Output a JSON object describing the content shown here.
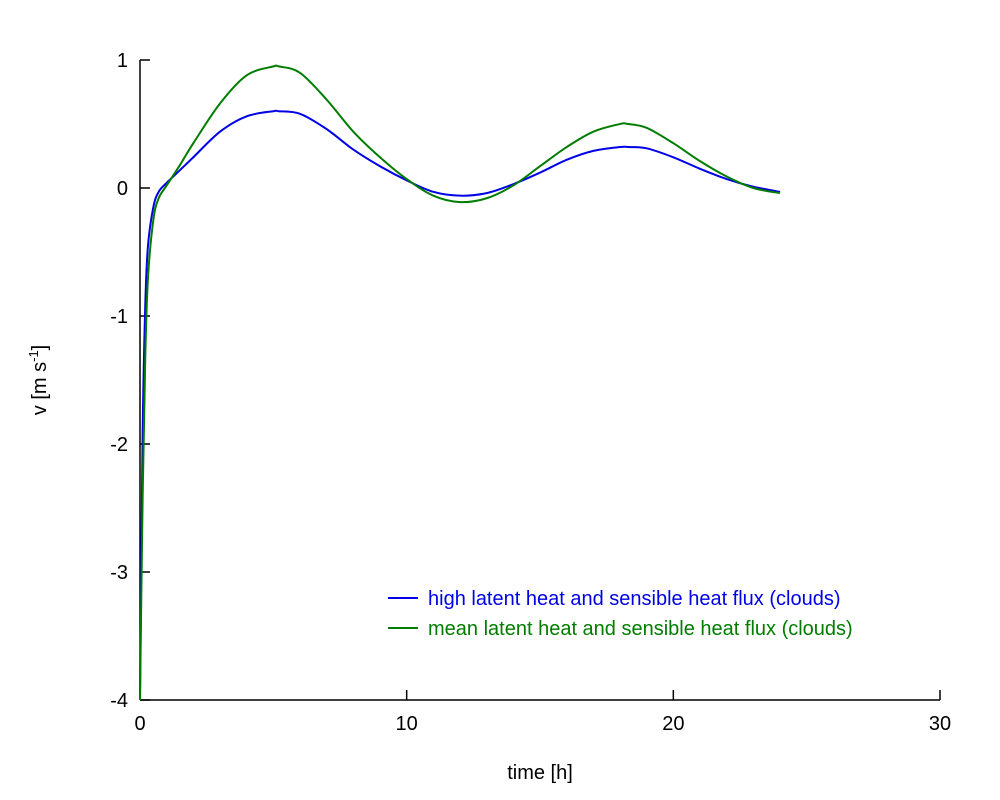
{
  "chart_data": {
    "type": "line",
    "title": "",
    "xlabel": "time [h]",
    "ylabel_main": "v [m s",
    "ylabel_sup": "-1",
    "ylabel_close": "]",
    "xlim": [
      0,
      30
    ],
    "ylim": [
      -4,
      1
    ],
    "xticks": [
      0,
      10,
      20,
      30
    ],
    "yticks": [
      -4,
      -3,
      -2,
      -1,
      0,
      1
    ],
    "grid": false,
    "legend_position": "lower-right",
    "series": [
      {
        "name": "high latent heat and sensible heat flux (clouds)",
        "color": "#0000e6",
        "x": [
          0,
          0.1,
          0.2,
          0.3,
          0.5,
          0.7,
          1,
          1.5,
          2,
          3,
          4,
          5,
          5.2,
          6,
          7,
          8,
          9,
          10,
          11,
          12,
          13,
          14,
          15,
          16,
          17,
          18,
          18.3,
          19,
          20,
          21,
          22,
          23,
          24
        ],
        "y": [
          -4,
          -1.9,
          -0.9,
          -0.45,
          -0.15,
          -0.03,
          0.04,
          0.14,
          0.24,
          0.44,
          0.56,
          0.6,
          0.6,
          0.58,
          0.46,
          0.3,
          0.17,
          0.06,
          -0.03,
          -0.06,
          -0.04,
          0.03,
          0.12,
          0.22,
          0.29,
          0.32,
          0.32,
          0.31,
          0.24,
          0.15,
          0.07,
          0.01,
          -0.03
        ]
      },
      {
        "name": "mean latent heat and sensible heat flux (clouds)",
        "color": "#007d00",
        "x": [
          0,
          0.1,
          0.2,
          0.3,
          0.5,
          0.7,
          1,
          1.5,
          2,
          3,
          4,
          5,
          5.2,
          6,
          7,
          8,
          9,
          10,
          11,
          12,
          13,
          14,
          15,
          16,
          17,
          18,
          18.3,
          19,
          20,
          21,
          22,
          23,
          24
        ],
        "y": [
          -4,
          -2.4,
          -1.3,
          -0.7,
          -0.25,
          -0.08,
          0.02,
          0.18,
          0.35,
          0.66,
          0.88,
          0.95,
          0.95,
          0.9,
          0.69,
          0.44,
          0.24,
          0.07,
          -0.06,
          -0.11,
          -0.08,
          0.02,
          0.17,
          0.32,
          0.44,
          0.5,
          0.5,
          0.47,
          0.35,
          0.21,
          0.09,
          0.0,
          -0.04
        ]
      }
    ]
  }
}
